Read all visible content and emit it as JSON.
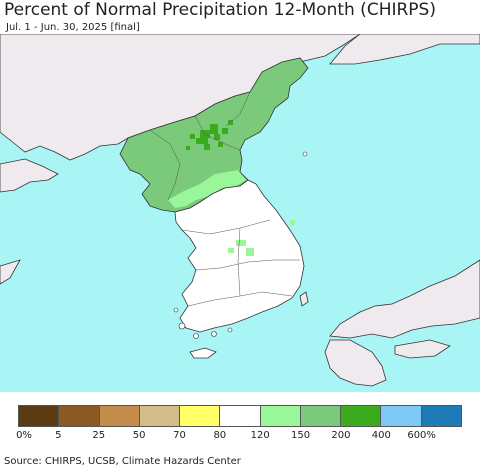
{
  "title": "Percent of Normal Precipitation 12-Month (CHIRPS)",
  "subtitle": "Jul. 1 - Jun. 30, 2025 [final]",
  "source": "Source: CHIRPS, UCSB, Climate Hazards Center",
  "colors": {
    "ocean": "#a9f5f5",
    "foreign_land": "#eeeaee",
    "south_korea": "#ffffff",
    "north_korea_150_200": "#7bc97b",
    "north_korea_120_150": "#99f799",
    "north_korea_200_400": "#3aab1c",
    "borders": "#333333"
  },
  "legend": {
    "colors": [
      "#5a3b14",
      "#8b5a23",
      "#c48c4a",
      "#d2bd88",
      "#ffff66",
      "#ffffff",
      "#99f799",
      "#7bc97b",
      "#3aab1c",
      "#80c8f5",
      "#1f7bb8"
    ],
    "labels": [
      "0%",
      "5",
      "25",
      "50",
      "70",
      "80",
      "120",
      "150",
      "200",
      "400",
      "600%"
    ]
  }
}
